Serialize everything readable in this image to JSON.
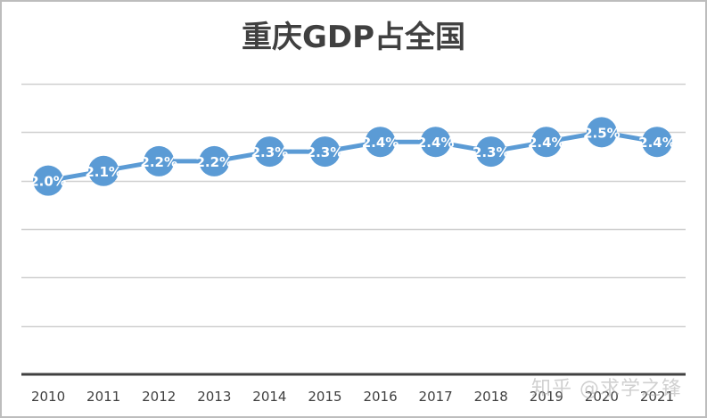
{
  "chart_data": {
    "type": "line",
    "title": "重庆GDP占全国",
    "xlabel": "",
    "ylabel": "",
    "categories": [
      "2010",
      "2011",
      "2012",
      "2013",
      "2014",
      "2015",
      "2016",
      "2017",
      "2018",
      "2019",
      "2020",
      "2021"
    ],
    "series": [
      {
        "name": "重庆GDP占全国",
        "values": [
          2.0,
          2.1,
          2.2,
          2.2,
          2.3,
          2.3,
          2.4,
          2.4,
          2.3,
          2.4,
          2.5,
          2.4
        ],
        "labels": [
          "2.0%",
          "2.1%",
          "2.2%",
          "2.2%",
          "2.3%",
          "2.3%",
          "2.4%",
          "2.4%",
          "2.3%",
          "2.4%",
          "2.5%",
          "2.4%"
        ],
        "color": "#5b9bd5"
      }
    ],
    "ylim": [
      0,
      3.0
    ],
    "y_gridlines": [
      0.5,
      1.0,
      1.5,
      2.0,
      2.5,
      3.0
    ],
    "grid": true,
    "legend": "none",
    "y_tick_labels_visible": false
  },
  "watermark": "知乎 @求学之锋",
  "colors": {
    "line": "#5b9bd5",
    "marker": "#5b9bd5",
    "label_text": "#ffffff",
    "gridline": "#d0d0d0",
    "axis": "#404040",
    "title": "#404040"
  }
}
